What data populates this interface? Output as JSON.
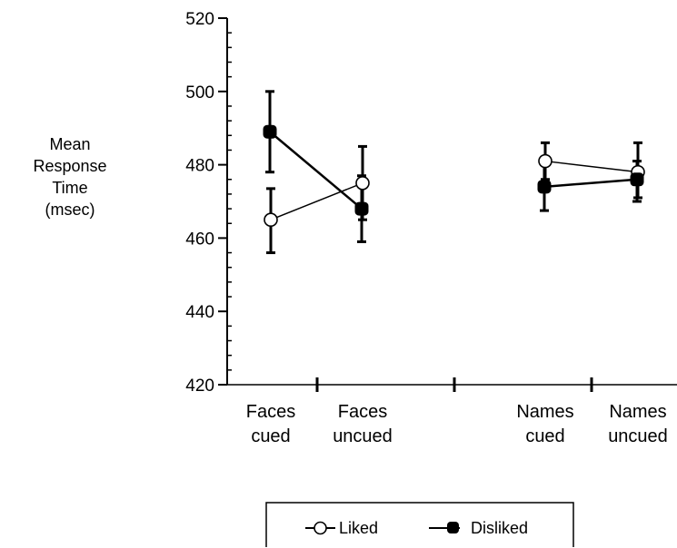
{
  "chart_data": {
    "type": "line",
    "title": "",
    "xlabel": "",
    "ylabel_lines": [
      "Mean",
      "Response",
      "Time",
      "(msec)"
    ],
    "ylim": [
      420,
      520
    ],
    "yticks": [
      420,
      440,
      460,
      480,
      500,
      520
    ],
    "grid": false,
    "legend_position": "bottom",
    "groups": [
      {
        "categories": [
          {
            "lines": [
              "Faces",
              "cued"
            ]
          },
          {
            "lines": [
              "Faces",
              "uncued"
            ]
          }
        ]
      },
      {
        "categories": [
          {
            "lines": [
              "Names",
              "cued"
            ]
          },
          {
            "lines": [
              "Names",
              "uncued"
            ]
          }
        ]
      }
    ],
    "series": [
      {
        "name": "Liked",
        "marker": "open-circle",
        "color": "#000000",
        "groups": [
          [
            {
              "y": 465,
              "err_low": 456,
              "err_high": 473.5
            },
            {
              "y": 475,
              "err_low": 465,
              "err_high": 485
            }
          ],
          [
            {
              "y": 481,
              "err_low": 476,
              "err_high": 486
            },
            {
              "y": 478,
              "err_low": 471,
              "err_high": 486
            }
          ]
        ]
      },
      {
        "name": "Disliked",
        "marker": "filled-square",
        "color": "#000000",
        "groups": [
          [
            {
              "y": 489,
              "err_low": 478,
              "err_high": 500
            },
            {
              "y": 468,
              "err_low": 459,
              "err_high": 477
            }
          ],
          [
            {
              "y": 474,
              "err_low": 467.5,
              "err_high": 481
            },
            {
              "y": 476,
              "err_low": 470,
              "err_high": 481
            }
          ]
        ]
      }
    ]
  }
}
